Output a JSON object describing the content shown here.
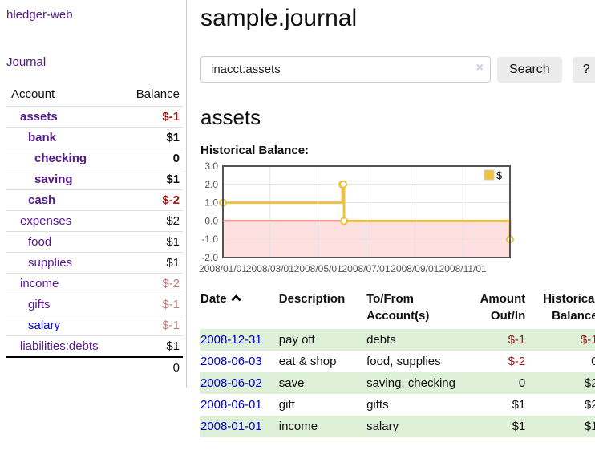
{
  "app": {
    "brand": "hledger-web"
  },
  "sidebar": {
    "nav_journal": "Journal",
    "accounts": {
      "col_account": "Account",
      "col_balance": "Balance",
      "rows": [
        {
          "name": "assets",
          "balance": "$-1",
          "depth": 1,
          "bold": true,
          "balance_style": "neg",
          "link_color": "purple"
        },
        {
          "name": "bank",
          "balance": "$1",
          "depth": 2,
          "bold": true,
          "balance_style": "",
          "link_color": "purple"
        },
        {
          "name": "checking",
          "balance": "0",
          "depth": 3,
          "bold": true,
          "balance_style": "",
          "link_color": "purple"
        },
        {
          "name": "saving",
          "balance": "$1",
          "depth": 3,
          "bold": true,
          "balance_style": "",
          "link_color": "purple"
        },
        {
          "name": "cash",
          "balance": "$-2",
          "depth": 2,
          "bold": true,
          "balance_style": "neg",
          "link_color": "purple"
        },
        {
          "name": "expenses",
          "balance": "$2",
          "depth": 1,
          "bold": false,
          "balance_style": "",
          "link_color": "purple"
        },
        {
          "name": "food",
          "balance": "$1",
          "depth": 2,
          "bold": false,
          "balance_style": "",
          "link_color": "purple"
        },
        {
          "name": "supplies",
          "balance": "$1",
          "depth": 2,
          "bold": false,
          "balance_style": "",
          "link_color": "purple"
        },
        {
          "name": "income",
          "balance": "$-2",
          "depth": 1,
          "bold": false,
          "balance_style": "neg-soft",
          "link_color": "purple"
        },
        {
          "name": "gifts",
          "balance": "$-1",
          "depth": 2,
          "bold": false,
          "balance_style": "neg-soft",
          "link_color": "purple"
        },
        {
          "name": "salary",
          "balance": "$-1",
          "depth": 2,
          "bold": false,
          "balance_style": "neg-soft",
          "link_color": "blue"
        },
        {
          "name": "liabilities:debts",
          "balance": "$1",
          "depth": 1,
          "bold": false,
          "balance_style": "",
          "link_color": "purple"
        }
      ],
      "total": "0"
    }
  },
  "main": {
    "title": "sample.journal",
    "search": {
      "value": "inacct:assets",
      "clear_label": "×",
      "search_button": "Search",
      "help_button": "?"
    },
    "account_heading": "assets",
    "section_label": "Historical Balance:"
  },
  "chart_data": {
    "type": "line",
    "steps": true,
    "title": "Historical Balance:",
    "series": [
      {
        "name": "$",
        "color": "#EDC240",
        "marker_fill": "#ffffff",
        "points": [
          [
            "2008-01-01",
            1
          ],
          [
            "2008-06-01",
            2
          ],
          [
            "2008-06-02",
            2
          ],
          [
            "2008-06-03",
            0
          ],
          [
            "2008-12-31",
            -1
          ]
        ]
      }
    ],
    "x_start": "2008-01-01",
    "x_end": "2008-12-31",
    "x_ticks": [
      "2008/01/01",
      "2008/03/01",
      "2008/05/01",
      "2008/07/01",
      "2008/09/01",
      "2008/11/01"
    ],
    "y_ticks": [
      3,
      2,
      1,
      0,
      -1,
      -2
    ],
    "y_tick_labels": [
      "3.0",
      "2.0",
      "1.0",
      "0.0",
      "-1.0",
      "-2.0"
    ],
    "ylim": [
      -2,
      3
    ],
    "grid": true,
    "legend": {
      "label": "$",
      "position": "top-right"
    },
    "negative_fill": "rgba(255,0,0,0.12)",
    "zero_line_color": "#8b0000",
    "border_color": "#545454",
    "grid_color": "#e3e3e3",
    "tick_color": "#545454"
  },
  "register": {
    "headers": [
      {
        "label": "Date",
        "sorted": "asc",
        "align": "left"
      },
      {
        "label": "Description",
        "align": "left"
      },
      {
        "label": "To/From Account(s)",
        "align": "left"
      },
      {
        "label": "Amount Out/In",
        "align": "right"
      },
      {
        "label": "Historical Balance",
        "align": "right"
      }
    ],
    "rows": [
      {
        "date": "2008-12-31",
        "description": "pay off",
        "accounts": "debts",
        "amount": "$-1",
        "amount_negative": true,
        "balance": "$-1",
        "balance_negative": true
      },
      {
        "date": "2008-06-03",
        "description": "eat & shop",
        "accounts": "food, supplies",
        "amount": "$-2",
        "amount_negative": true,
        "balance": "0",
        "balance_negative": false
      },
      {
        "date": "2008-06-02",
        "description": "save",
        "accounts": "saving, checking",
        "amount": "0",
        "amount_negative": false,
        "balance": "$2",
        "balance_negative": false
      },
      {
        "date": "2008-06-01",
        "description": "gift",
        "accounts": "gifts",
        "amount": "$1",
        "amount_negative": false,
        "balance": "$2",
        "balance_negative": false
      },
      {
        "date": "2008-01-01",
        "description": "income",
        "accounts": "salary",
        "amount": "$1",
        "amount_negative": false,
        "balance": "$1",
        "balance_negative": false
      }
    ]
  },
  "colors": {
    "link_purple": "#551a8b",
    "link_blue": "#0000cc",
    "negative_strong": "#971a1a",
    "negative_soft": "#c07d7d",
    "row_green": "#dff0d8",
    "series_yellow": "#EDC240"
  }
}
